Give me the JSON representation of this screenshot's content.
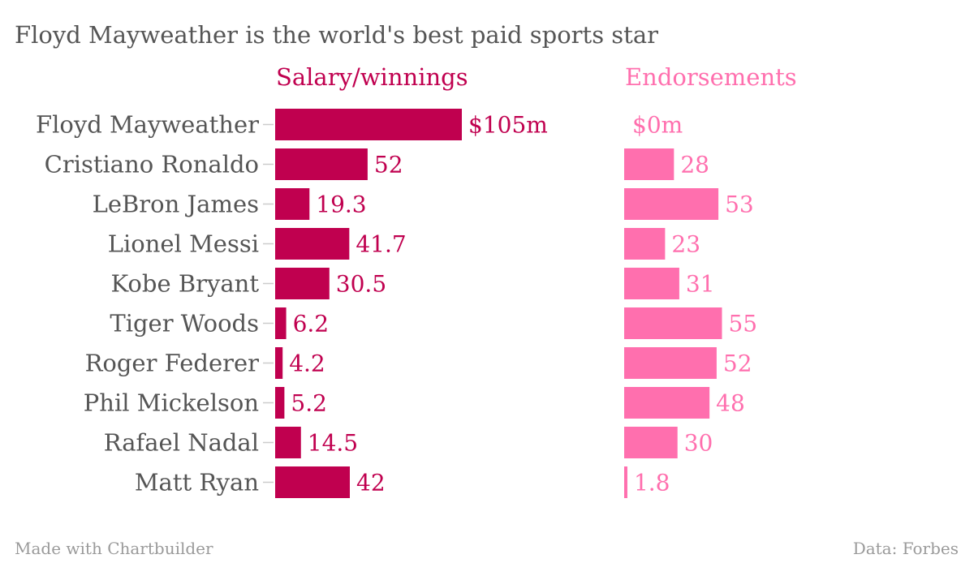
{
  "title": "Floyd Mayweather is the world's best paid sports star",
  "footer": {
    "credit": "Made with Chartbuilder",
    "source": "Data: Forbes"
  },
  "colors": {
    "salary": "#c0004f",
    "endorsements": "#ff6fae",
    "text": "#555555",
    "footer": "#9a9a9a",
    "tick": "#cccccc"
  },
  "chart_data": {
    "type": "bar",
    "orientation": "horizontal",
    "categories": [
      "Floyd Mayweather",
      "Cristiano Ronaldo",
      "LeBron James",
      "Lionel Messi",
      "Kobe Bryant",
      "Tiger Woods",
      "Roger Federer",
      "Phil Mickelson",
      "Rafael Nadal",
      "Matt Ryan"
    ],
    "series": [
      {
        "name": "Salary/winnings",
        "values": [
          105,
          52,
          19.3,
          41.7,
          30.5,
          6.2,
          4.2,
          5.2,
          14.5,
          42
        ],
        "value_labels": [
          "$105m",
          "52",
          "19.3",
          "41.7",
          "30.5",
          "6.2",
          "4.2",
          "5.2",
          "14.5",
          "42"
        ],
        "color": "#c0004f"
      },
      {
        "name": "Endorsements",
        "values": [
          0,
          28,
          53,
          23,
          31,
          55,
          52,
          48,
          30,
          1.8
        ],
        "value_labels": [
          "$0m",
          "28",
          "53",
          "23",
          "31",
          "55",
          "52",
          "48",
          "30",
          "1.8"
        ],
        "color": "#ff6fae"
      }
    ],
    "xlim": [
      0,
      105
    ],
    "grid": false,
    "legend": "panel headings above each column"
  }
}
